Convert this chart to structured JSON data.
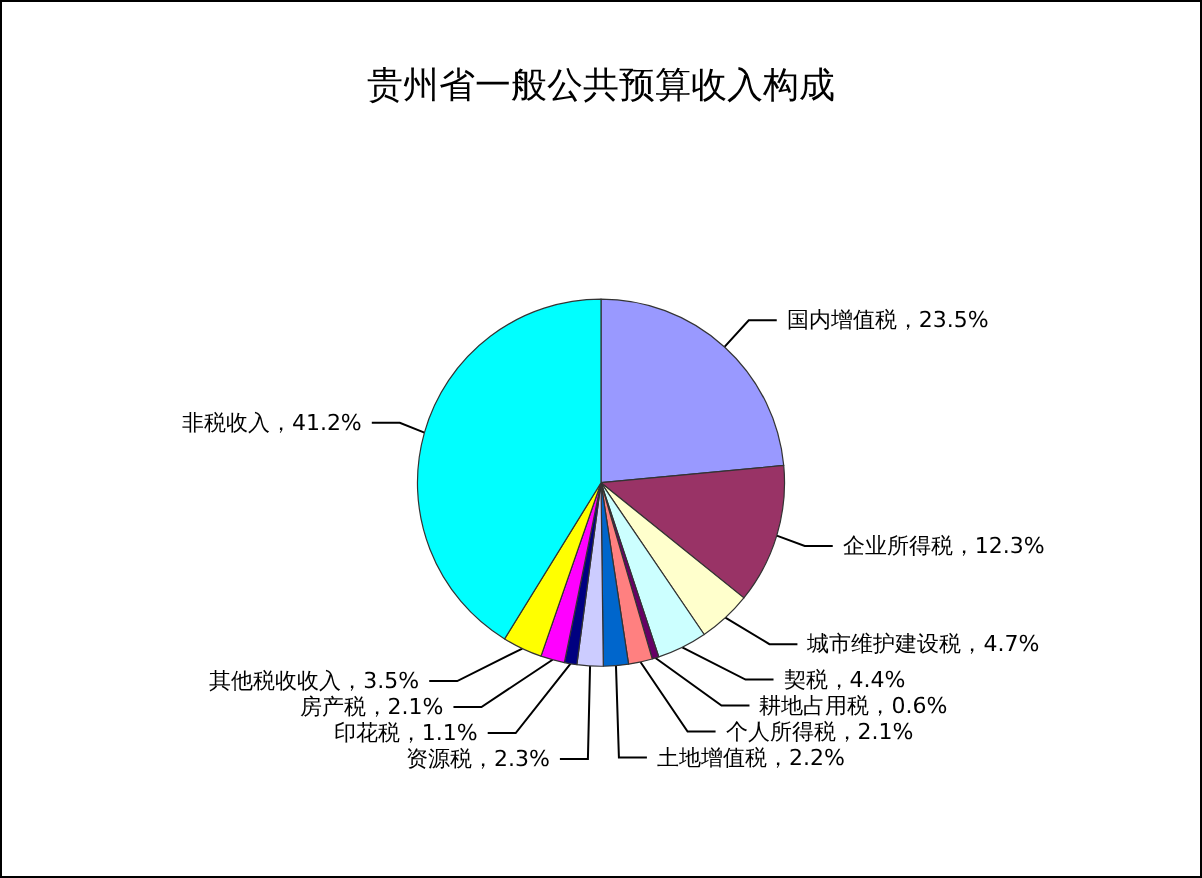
{
  "chart_data": {
    "type": "pie",
    "title": "贵州省一般公共预算收入构成",
    "categories": [
      "国内增值税",
      "企业所得税",
      "城市维护建设税",
      "契税",
      "耕地占用税",
      "个人所得税",
      "土地增值税",
      "资源税",
      "印花税",
      "房产税",
      "其他税收收入",
      "非税收入"
    ],
    "values": [
      23.5,
      12.3,
      4.7,
      4.4,
      0.6,
      2.1,
      2.2,
      2.3,
      1.1,
      2.1,
      3.5,
      41.2
    ],
    "value_labels": [
      "23.5%",
      "12.3%",
      "4.7%",
      "4.4%",
      "0.6%",
      "2.1%",
      "2.2%",
      "2.3%",
      "1.1%",
      "2.1%",
      "3.5%",
      "41.2%"
    ],
    "colors": [
      "#9999ff",
      "#993366",
      "#ffffcc",
      "#ccffff",
      "#660066",
      "#ff8080",
      "#0066cc",
      "#ccccff",
      "#000080",
      "#ff00ff",
      "#ffff00",
      "#00ffff"
    ],
    "legend": false
  }
}
